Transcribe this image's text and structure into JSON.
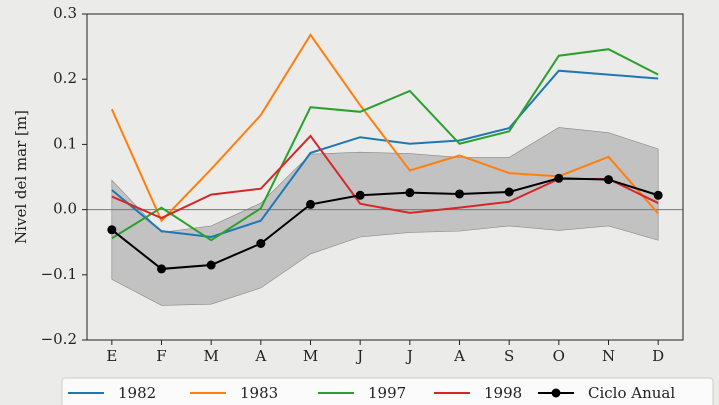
{
  "chart_data": {
    "type": "line",
    "y_label": "Nivel del mar [m]",
    "categories": [
      "E",
      "F",
      "M",
      "A",
      "M",
      "J",
      "J",
      "A",
      "S",
      "O",
      "N",
      "D"
    ],
    "series": [
      {
        "name": "1982",
        "color": "#1f77b4",
        "values": [
          0.03,
          -0.033,
          -0.042,
          -0.017,
          0.087,
          0.111,
          0.101,
          0.106,
          0.125,
          0.213,
          0.207,
          0.201
        ]
      },
      {
        "name": "1983",
        "color": "#ff7f0e",
        "values": [
          0.154,
          -0.017,
          0.062,
          0.145,
          0.268,
          0.16,
          0.06,
          0.083,
          0.056,
          0.051,
          0.081,
          -0.006
        ]
      },
      {
        "name": "1997",
        "color": "#2ca02c",
        "values": [
          -0.044,
          0.003,
          -0.047,
          0.002,
          0.157,
          0.15,
          0.182,
          0.101,
          0.12,
          0.236,
          0.246,
          0.207
        ]
      },
      {
        "name": "1998",
        "color": "#d62728",
        "values": [
          0.02,
          -0.013,
          0.023,
          0.032,
          0.113,
          0.009,
          -0.005,
          0.003,
          0.012,
          0.047,
          0.047,
          0.01
        ]
      },
      {
        "name": "Ciclo Anual",
        "color": "#000000",
        "markers": true,
        "values": [
          -0.031,
          -0.091,
          -0.085,
          -0.052,
          0.008,
          0.022,
          0.026,
          0.024,
          0.027,
          0.048,
          0.046,
          0.022
        ]
      }
    ],
    "band": {
      "color": "#a0a0a0",
      "upper": [
        0.045,
        -0.035,
        -0.025,
        0.01,
        0.085,
        0.088,
        0.086,
        0.08,
        0.08,
        0.126,
        0.118,
        0.093
      ],
      "lower": [
        -0.107,
        -0.147,
        -0.145,
        -0.12,
        -0.068,
        -0.042,
        -0.035,
        -0.033,
        -0.025,
        -0.032,
        -0.025,
        -0.047
      ]
    },
    "ylim": [
      -0.2,
      0.3
    ],
    "yticks": [
      {
        "value": -0.2,
        "label": "−0.2"
      },
      {
        "value": -0.1,
        "label": "−0.1"
      },
      {
        "value": 0,
        "label": "0.0"
      },
      0.1,
      0.2,
      0.3
    ],
    "zero_line": true,
    "legend": "bottom"
  }
}
